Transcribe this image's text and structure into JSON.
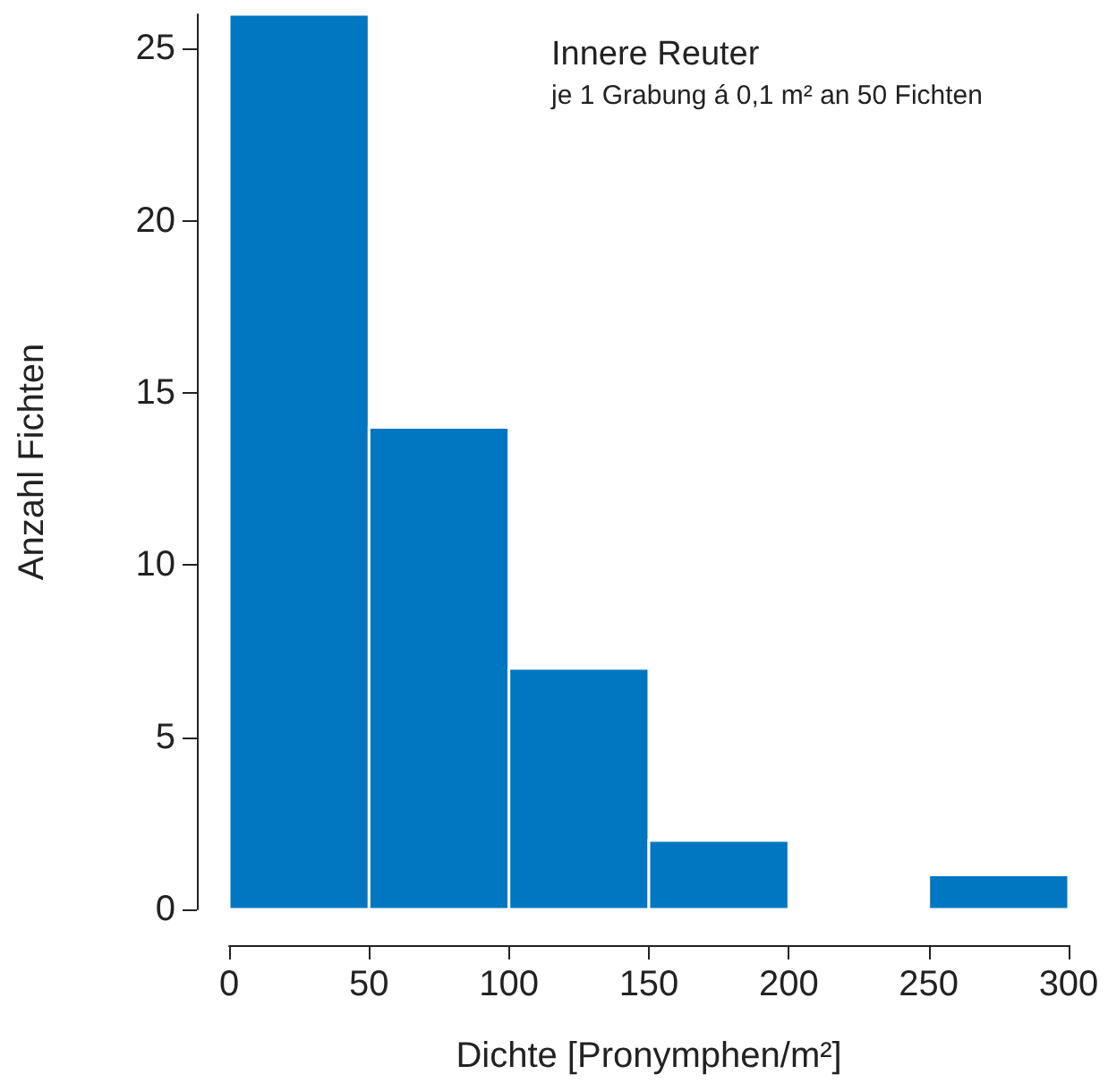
{
  "chart_data": {
    "type": "histogram",
    "title": "Innere Reuter",
    "subtitle": "je 1 Grabung á 0,1 m² an 50 Fichten",
    "xlabel": "Dichte [Pronymphen/m²]",
    "ylabel": "Anzahl Fichten",
    "bins": [
      0,
      50,
      100,
      150,
      200,
      250,
      300
    ],
    "values": [
      26,
      14,
      7,
      2,
      0,
      1
    ],
    "color": "#0077c0",
    "xlim": [
      0,
      300
    ],
    "xticks": [
      0,
      50,
      100,
      150,
      200,
      250,
      300
    ],
    "ylim": [
      0,
      26
    ],
    "yticks": [
      0,
      5,
      10,
      15,
      20,
      25
    ]
  }
}
